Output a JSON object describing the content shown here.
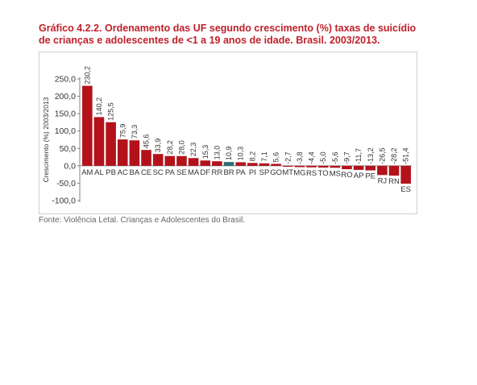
{
  "title": {
    "line1": "Gráfico 4.2.2. Ordenamento das UF segundo crescimento (%) taxas de suicídio",
    "line2": "de crianças e adolescentes de <1 a 19 anos de idade. Brasil. 2003/2013."
  },
  "source": "Fonte: Violência Letal. Crianças e Adolescentes do Brasil.",
  "colors": {
    "title": "#c0202a",
    "bar": "#b3121b",
    "highlight": "#2e6e74",
    "axis": "#666666",
    "text": "#333333"
  },
  "chart_data": {
    "type": "bar",
    "title": "Gráfico 4.2.2. Ordenamento das UF segundo crescimento (%) taxas de suicídio de crianças e adolescentes de <1 a 19 anos de idade. Brasil. 2003/2013.",
    "xlabel": "",
    "ylabel": "Crescimento (%) 2003/2013",
    "ylim": [
      -100,
      250
    ],
    "yticks": [
      {
        "v": -100,
        "label": "-100,0"
      },
      {
        "v": -50,
        "label": "-50,0"
      },
      {
        "v": 0,
        "label": "0,0"
      },
      {
        "v": 50,
        "label": "50,0"
      },
      {
        "v": 100,
        "label": "100,0"
      },
      {
        "v": 150,
        "label": "150,0"
      },
      {
        "v": 200,
        "label": "200,0"
      },
      {
        "v": 250,
        "label": "250,0"
      }
    ],
    "grid": false,
    "highlight_category": "BR",
    "categories": [
      "AM",
      "AL",
      "PB",
      "AC",
      "BA",
      "CE",
      "SC",
      "PA",
      "SE",
      "MA",
      "DF",
      "RR",
      "BR",
      "PA",
      "PI",
      "SP",
      "GO",
      "MT",
      "MG",
      "RS",
      "TO",
      "MS",
      "RO",
      "AP",
      "PE",
      "RJ",
      "RN",
      "ES"
    ],
    "values": [
      230.2,
      140.2,
      125.5,
      75.9,
      73.3,
      45.6,
      33.9,
      28.2,
      28.0,
      22.3,
      15.3,
      13.0,
      10.9,
      10.3,
      8.2,
      7.1,
      5.6,
      -2.7,
      -3.8,
      -4.4,
      -5.0,
      -5.6,
      -9.7,
      -11.7,
      -13.2,
      -26.5,
      -28.2,
      -51.4
    ],
    "value_labels": [
      "230,2",
      "140,2",
      "125,5",
      "75,9",
      "73,3",
      "45,6",
      "33,9",
      "28,2",
      "28,0",
      "22,3",
      "15,3",
      "13,0",
      "10,9",
      "10,3",
      "8,2",
      "7,1",
      "5,6",
      "-2,7",
      "-3,8",
      "-4,4",
      "-5,0",
      "-5,6",
      "-9,7",
      "-11,7",
      "-13,2",
      "-26,5",
      "-28,2",
      "-51,4"
    ]
  }
}
